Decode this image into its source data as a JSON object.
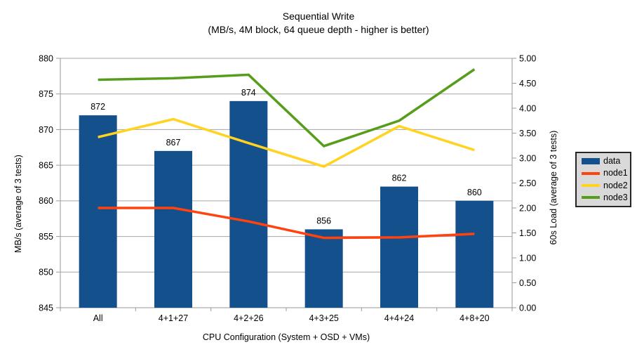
{
  "title": "Sequential Write",
  "subtitle": "(MB/s, 4M block, 64 queue depth - higher is better)",
  "colors": {
    "bar": "#14508c",
    "node1": "#ff420e",
    "node2": "#ffd320",
    "node3": "#579d1c",
    "grid": "#a6a6a6",
    "axis": "#9a9a9a",
    "legend_bg": "#d9d9d9",
    "text": "#000000"
  },
  "chart_data": {
    "type": "bar",
    "combo": "bar+line",
    "categories": [
      "All",
      "4+1+27",
      "4+2+26",
      "4+3+25",
      "4+4+24",
      "4+8+20"
    ],
    "bar_series": {
      "name": "data",
      "axis": "left",
      "values": [
        872,
        867,
        874,
        856,
        862,
        860
      ],
      "data_labels": [
        "872",
        "867",
        "874",
        "856",
        "862",
        "860"
      ]
    },
    "line_series": [
      {
        "name": "node1",
        "axis": "right",
        "values": [
          2.0,
          2.0,
          1.73,
          1.4,
          1.41,
          1.48
        ]
      },
      {
        "name": "node2",
        "axis": "right",
        "values": [
          3.42,
          3.78,
          3.3,
          2.83,
          3.64,
          3.16
        ]
      },
      {
        "name": "node3",
        "axis": "right",
        "values": [
          4.57,
          4.6,
          4.67,
          3.24,
          3.75,
          4.78
        ]
      }
    ],
    "left_axis": {
      "label": "MB/s (average of 3 tests)",
      "min": 845,
      "max": 880,
      "step": 5,
      "ticks": [
        "845",
        "850",
        "855",
        "860",
        "865",
        "870",
        "875",
        "880"
      ]
    },
    "right_axis": {
      "label": "60s Load (average of 3 tests)",
      "min": 0,
      "max": 5,
      "step": 0.5,
      "ticks": [
        "0.00",
        "0.50",
        "1.00",
        "1.50",
        "2.00",
        "2.50",
        "3.00",
        "3.50",
        "4.00",
        "4.50",
        "5.00"
      ]
    },
    "x_axis": {
      "label": "CPU Configuration (System + OSD + VMs)"
    },
    "grid": "horizontal",
    "legend": {
      "position": "right",
      "entries": [
        {
          "label": "data",
          "type": "box",
          "series": "bar"
        },
        {
          "label": "node1",
          "type": "line",
          "series": "node1"
        },
        {
          "label": "node2",
          "type": "line",
          "series": "node2"
        },
        {
          "label": "node3",
          "type": "line",
          "series": "node3"
        }
      ]
    }
  }
}
